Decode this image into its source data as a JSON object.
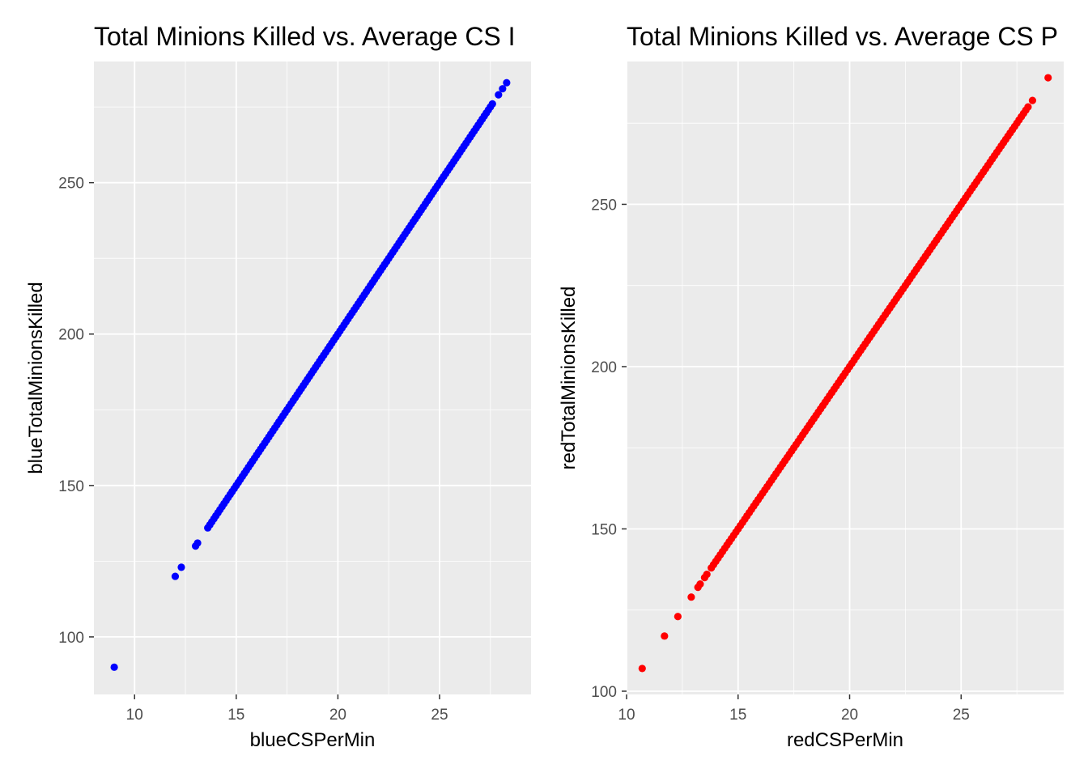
{
  "chart_data": [
    {
      "type": "scatter",
      "title": "Total Minions Killed vs. Average CS I",
      "xlabel": "blueCSPerMin",
      "ylabel": "blueTotalMinionsKilled",
      "xlim": [
        8,
        29.5
      ],
      "ylim": [
        81,
        290
      ],
      "x_ticks": [
        10,
        15,
        20,
        25
      ],
      "y_ticks": [
        100,
        150,
        200,
        250
      ],
      "grid": true,
      "point_color": "#0000ff",
      "points": [
        {
          "x": 9.0,
          "y": 90
        },
        {
          "x": 12.0,
          "y": 120
        },
        {
          "x": 12.3,
          "y": 123
        },
        {
          "x": 13.0,
          "y": 130
        },
        {
          "x": 13.1,
          "y": 131
        }
      ],
      "dense_segment": {
        "x_start": 13.6,
        "x_end": 27.6,
        "step": 0.1
      },
      "tail_points": [
        {
          "x": 27.9,
          "y": 279
        },
        {
          "x": 28.1,
          "y": 281
        },
        {
          "x": 28.3,
          "y": 283
        }
      ]
    },
    {
      "type": "scatter",
      "title": "Total Minions Killed vs. Average CS P",
      "xlabel": "redCSPerMin",
      "ylabel": "redTotalMinionsKilled",
      "xlim": [
        10,
        29.6
      ],
      "ylim": [
        99,
        294
      ],
      "x_ticks": [
        10,
        15,
        20,
        25
      ],
      "y_ticks": [
        100,
        150,
        200,
        250
      ],
      "grid": true,
      "point_color": "#ff0000",
      "points": [
        {
          "x": 10.7,
          "y": 107
        },
        {
          "x": 11.7,
          "y": 117
        },
        {
          "x": 12.3,
          "y": 123
        },
        {
          "x": 12.9,
          "y": 129
        },
        {
          "x": 13.2,
          "y": 132
        },
        {
          "x": 13.3,
          "y": 133
        },
        {
          "x": 13.5,
          "y": 135
        },
        {
          "x": 13.6,
          "y": 136
        }
      ],
      "dense_segment": {
        "x_start": 13.8,
        "x_end": 28.0,
        "step": 0.1
      },
      "tail_points": [
        {
          "x": 28.2,
          "y": 282
        },
        {
          "x": 28.9,
          "y": 289
        }
      ]
    }
  ]
}
